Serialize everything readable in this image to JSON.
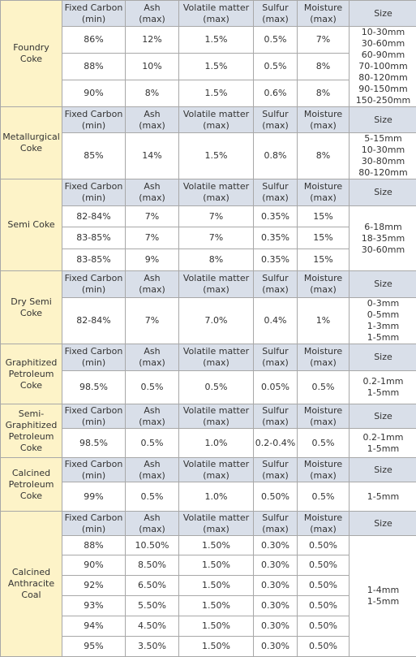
{
  "headers": {
    "carbon": [
      "Fixed Carbon",
      "(min)"
    ],
    "ash": [
      "Ash",
      "(max)"
    ],
    "volatile": [
      "Volatile matter",
      "(max)"
    ],
    "sulfur": [
      "Sulfur",
      "(max)"
    ],
    "moisture": [
      "Moisture",
      "(max)"
    ],
    "size": "Size"
  },
  "sections": [
    {
      "name": [
        "Foundry",
        "Coke"
      ],
      "rows": [
        [
          "86%",
          "12%",
          "1.5%",
          "0.5%",
          "7%"
        ],
        [
          "88%",
          "10%",
          "1.5%",
          "0.5%",
          "8%"
        ],
        [
          "90%",
          "8%",
          "1.5%",
          "0.6%",
          "8%"
        ]
      ],
      "sizes": [
        "10-30mm",
        "30-60mm",
        "60-90mm",
        "70-100mm",
        "80-120mm",
        "90-150mm",
        "150-250mm"
      ]
    },
    {
      "name": [
        "Metallurgical",
        "Coke"
      ],
      "rows": [
        [
          "85%",
          "14%",
          "1.5%",
          "0.8%",
          "8%"
        ]
      ],
      "sizes": [
        "5-15mm",
        "10-30mm",
        "30-80mm",
        "80-120mm"
      ]
    },
    {
      "name": [
        "Semi Coke"
      ],
      "rows": [
        [
          "82-84%",
          "7%",
          "7%",
          "0.35%",
          "15%"
        ],
        [
          "83-85%",
          "7%",
          "7%",
          "0.35%",
          "15%"
        ],
        [
          "83-85%",
          "9%",
          "8%",
          "0.35%",
          "15%"
        ]
      ],
      "sizes": [
        "6-18mm",
        "18-35mm",
        "30-60mm"
      ]
    },
    {
      "name": [
        "Dry Semi",
        "Coke"
      ],
      "rows": [
        [
          "82-84%",
          "7%",
          "7.0%",
          "0.4%",
          "1%"
        ]
      ],
      "sizes": [
        "0-3mm",
        "0-5mm",
        "1-3mm",
        "1-5mm"
      ]
    },
    {
      "name": [
        "Graphitized",
        "Petroleum",
        "Coke"
      ],
      "rows": [
        [
          "98.5%",
          "0.5%",
          "0.5%",
          "0.05%",
          "0.5%"
        ]
      ],
      "sizes": [
        "0.2-1mm",
        "1-5mm"
      ]
    },
    {
      "name": [
        "Semi-",
        "Graphitized",
        "Petroleum",
        "Coke"
      ],
      "rows": [
        [
          "98.5%",
          "0.5%",
          "1.0%",
          "0.2-0.4%",
          "0.5%"
        ]
      ],
      "sizes": [
        "0.2-1mm",
        "1-5mm"
      ]
    },
    {
      "name": [
        "Calcined",
        "Petroleum",
        "Coke"
      ],
      "rows": [
        [
          "99%",
          "0.5%",
          "1.0%",
          "0.50%",
          "0.5%"
        ]
      ],
      "sizes": [
        "1-5mm"
      ]
    },
    {
      "name": [
        "Calcined",
        "Anthracite",
        "Coal"
      ],
      "rows": [
        [
          "88%",
          "10.50%",
          "1.50%",
          "0.30%",
          "0.50%"
        ],
        [
          "90%",
          "8.50%",
          "1.50%",
          "0.30%",
          "0.50%"
        ],
        [
          "92%",
          "6.50%",
          "1.50%",
          "0.30%",
          "0.50%"
        ],
        [
          "93%",
          "5.50%",
          "1.50%",
          "0.30%",
          "0.50%"
        ],
        [
          "94%",
          "4.50%",
          "1.50%",
          "0.30%",
          "0.50%"
        ],
        [
          "95%",
          "3.50%",
          "1.50%",
          "0.30%",
          "0.50%"
        ]
      ],
      "sizes": [
        "1-4mm",
        "1-5mm"
      ]
    }
  ]
}
